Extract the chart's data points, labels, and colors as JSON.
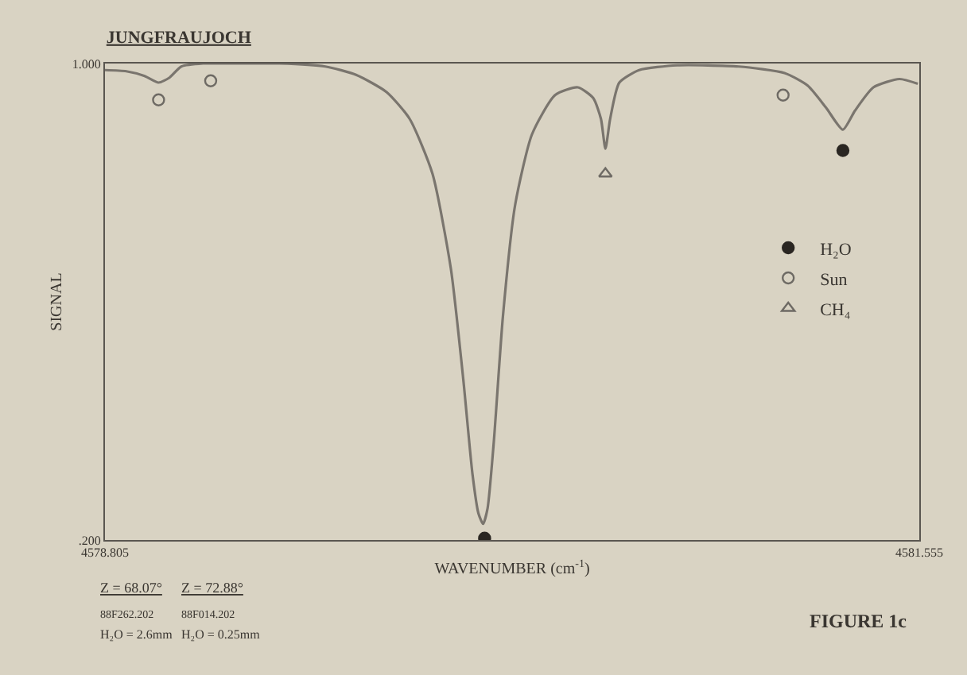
{
  "chart_data": {
    "type": "line",
    "title": "JUNGFRAUJOCH",
    "xlabel": "WAVENUMBER (cm$^{-1}$)",
    "ylabel": "SIGNAL",
    "xlim": [
      4578.805,
      4581.555
    ],
    "xticks": [
      4578.805,
      4581.555
    ],
    "ylim": [
      0.2,
      1.0
    ],
    "yticks": [
      {
        "value": 0.2,
        "label": ".200"
      },
      {
        "value": 1.0,
        "label": "1.000"
      }
    ],
    "legend": "right",
    "series": [
      {
        "color": "#7a756e",
        "marker": "none",
        "x": [
          4578.805,
          4578.877,
          4578.939,
          4578.986,
          4579.022,
          4579.063,
          4579.136,
          4579.239,
          4579.394,
          4579.549,
          4579.653,
          4579.756,
          4579.834,
          4579.911,
          4579.973,
          4580.015,
          4580.046,
          4580.066,
          4580.082,
          4580.097,
          4580.118,
          4580.149,
          4580.19,
          4580.247,
          4580.325,
          4580.402,
          4580.454,
          4580.48,
          4580.495,
          4580.511,
          4580.542,
          4580.609,
          4580.738,
          4580.945,
          4581.1,
          4581.178,
          4581.24,
          4581.297,
          4581.338,
          4581.4,
          4581.488,
          4581.55
        ],
        "values": [
          0.989,
          0.987,
          0.979,
          0.968,
          0.976,
          0.995,
          1.0,
          1.0,
          1.0,
          0.995,
          0.981,
          0.952,
          0.907,
          0.815,
          0.656,
          0.47,
          0.311,
          0.245,
          0.227,
          0.253,
          0.364,
          0.576,
          0.762,
          0.881,
          0.947,
          0.96,
          0.942,
          0.907,
          0.857,
          0.907,
          0.968,
          0.989,
          0.997,
          0.995,
          0.984,
          0.963,
          0.926,
          0.889,
          0.921,
          0.96,
          0.974,
          0.966
        ]
      },
      {
        "name": "H₂O",
        "type": "scatter",
        "marker": "circle",
        "color": "#2a2622",
        "x": [
          4580.087,
          4581.297
        ],
        "values": [
          0.203,
          0.854
        ]
      },
      {
        "name": "Sun",
        "type": "scatter",
        "marker": "circle-open",
        "color": "#6e6a64",
        "x": [
          4578.986,
          4579.162,
          4581.095
        ],
        "values": [
          0.939,
          0.971,
          0.947
        ]
      },
      {
        "name": "CH₄",
        "type": "scatter",
        "marker": "triangle-open",
        "color": "#6e6a64",
        "x": [
          4580.495
        ],
        "values": [
          0.815
        ]
      }
    ],
    "annotations": [
      "Z = 68.07°",
      "88F262.202",
      "H₂O = 2.6mm",
      "Z = 72.88°",
      "88F014.202",
      "H₂O = 0.25mm",
      "FIGURE 1c"
    ]
  }
}
